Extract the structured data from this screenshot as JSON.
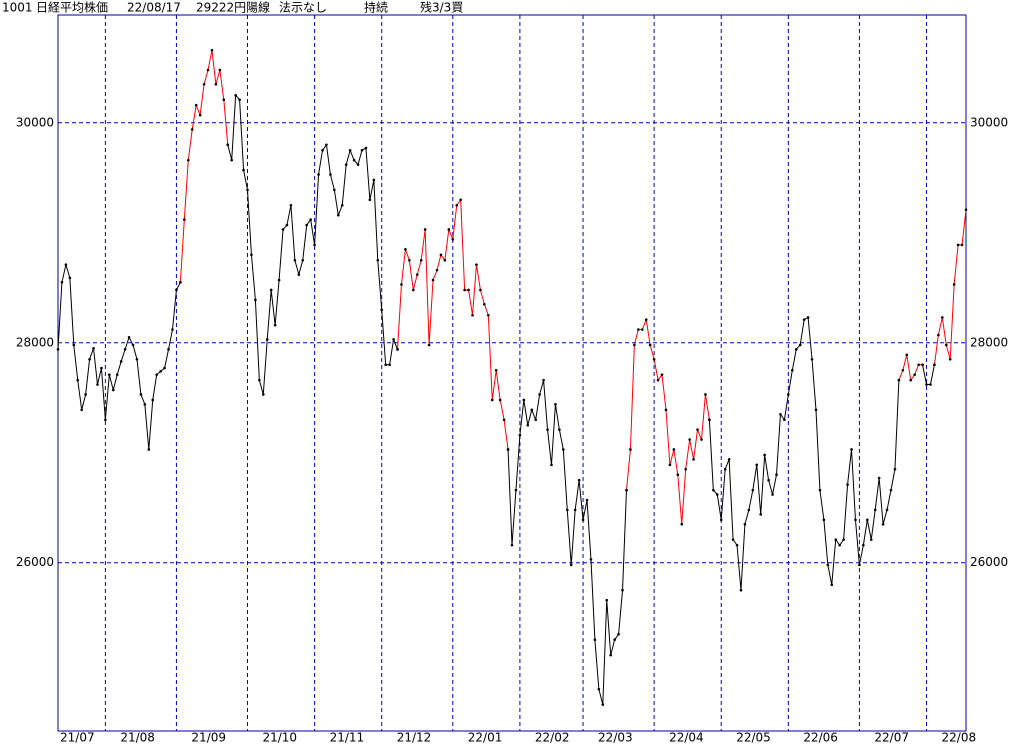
{
  "chart_data": {
    "type": "line",
    "header": [
      "1001",
      "日経平均株価",
      "22/08/17",
      "29222円",
      "陽線",
      "法示なし",
      "持続",
      "残3/3買"
    ],
    "categories": [
      "21/07",
      null,
      null,
      null,
      null,
      null,
      null,
      null,
      null,
      null,
      null,
      null,
      "21/08",
      null,
      null,
      null,
      null,
      null,
      null,
      null,
      null,
      null,
      null,
      null,
      null,
      null,
      null,
      null,
      null,
      null,
      "21/09",
      null,
      null,
      null,
      null,
      null,
      null,
      null,
      null,
      null,
      null,
      null,
      null,
      null,
      null,
      null,
      null,
      null,
      "21/10",
      null,
      null,
      null,
      null,
      null,
      null,
      null,
      null,
      null,
      null,
      null,
      null,
      null,
      null,
      null,
      null,
      "21/11",
      null,
      null,
      null,
      null,
      null,
      null,
      null,
      null,
      null,
      null,
      null,
      null,
      null,
      null,
      null,
      null,
      "21/12",
      null,
      null,
      null,
      null,
      null,
      null,
      null,
      null,
      null,
      null,
      null,
      null,
      null,
      null,
      null,
      null,
      null,
      "22/01",
      null,
      null,
      null,
      null,
      null,
      null,
      null,
      null,
      null,
      null,
      null,
      null,
      null,
      null,
      null,
      null,
      "22/02",
      null,
      null,
      null,
      null,
      null,
      null,
      null,
      null,
      null,
      null,
      null,
      null,
      null,
      null,
      null,
      "22/03",
      null,
      null,
      null,
      null,
      null,
      null,
      null,
      null,
      null,
      null,
      null,
      null,
      null,
      null,
      null,
      null,
      null,
      "22/04",
      null,
      null,
      null,
      null,
      null,
      null,
      null,
      null,
      null,
      null,
      null,
      null,
      null,
      null,
      null,
      null,
      "22/05",
      null,
      null,
      null,
      null,
      null,
      null,
      null,
      null,
      null,
      null,
      null,
      null,
      null,
      null,
      null,
      null,
      "22/06",
      null,
      null,
      null,
      null,
      null,
      null,
      null,
      null,
      null,
      null,
      null,
      null,
      null,
      null,
      null,
      null,
      null,
      "22/07",
      null,
      null,
      null,
      null,
      null,
      null,
      null,
      null,
      null,
      null,
      null,
      null,
      null,
      null,
      null,
      null,
      "22/08",
      null,
      null,
      null,
      null,
      null,
      null,
      null,
      null,
      null,
      null
    ],
    "series": [
      {
        "color": "#000000",
        "values": [
          27940,
          28550,
          28710,
          28590,
          27980,
          27660,
          27390,
          27530,
          27850,
          27950,
          27620,
          27770,
          27300,
          27710,
          27570,
          27710,
          27830,
          27940,
          28050,
          27980,
          27850,
          27530,
          27440,
          27030,
          27480,
          27710,
          27740,
          27770,
          27940,
          28120,
          28480,
          28550,
          null,
          null,
          null,
          null,
          null,
          null,
          null,
          null,
          null,
          null,
          null,
          29800,
          29660,
          30250,
          30210,
          29570,
          29390,
          28800,
          28390,
          27660,
          27530,
          28030,
          28480,
          28160,
          28570,
          29030,
          29070,
          29250,
          28750,
          28620,
          28750,
          29070,
          29120,
          28890,
          29530,
          29750,
          29800,
          29530,
          29390,
          29160,
          29250,
          29620,
          29750,
          29660,
          29620,
          29750,
          29770,
          29300,
          29480,
          28750,
          28300,
          27800,
          27800,
          28030,
          27940,
          null,
          null,
          null,
          null,
          null,
          null,
          null,
          null,
          null,
          null,
          null,
          null,
          null,
          null,
          null,
          null,
          null,
          null,
          null,
          null,
          null,
          null,
          null,
          null,
          null,
          null,
          null,
          27030,
          26160,
          26660,
          27160,
          27480,
          27250,
          27390,
          27300,
          27530,
          27660,
          27210,
          26890,
          27440,
          27210,
          27030,
          26480,
          25980,
          26480,
          26750,
          26390,
          26570,
          26030,
          25300,
          24850,
          24710,
          25660,
          25160,
          25300,
          25350,
          25750,
          26660,
          null,
          null,
          null,
          null,
          null,
          null,
          null,
          null,
          null,
          null,
          null,
          null,
          null,
          null,
          null,
          null,
          null,
          null,
          null,
          null,
          27300,
          26660,
          26620,
          26390,
          26850,
          26940,
          26210,
          26160,
          25750,
          26350,
          26480,
          26660,
          26890,
          26440,
          26980,
          26750,
          26620,
          26800,
          27350,
          27300,
          27530,
          27750,
          27940,
          27980,
          28210,
          28230,
          27850,
          27390,
          26660,
          26390,
          25980,
          25800,
          26210,
          26160,
          26210,
          26710,
          27030,
          26390,
          25980,
          26160,
          26390,
          26210,
          26480,
          26770,
          26350,
          26480,
          26660,
          26850,
          27660,
          null,
          null,
          null,
          null,
          null,
          27800,
          27620,
          27620,
          27800,
          null,
          null,
          null,
          null,
          null,
          null,
          null,
          null
        ]
      },
      {
        "color": "#ff0000",
        "values": [
          null,
          null,
          null,
          null,
          null,
          null,
          null,
          null,
          null,
          null,
          null,
          null,
          null,
          null,
          null,
          null,
          null,
          null,
          null,
          null,
          null,
          null,
          null,
          null,
          null,
          null,
          null,
          null,
          null,
          null,
          null,
          28550,
          29120,
          29660,
          29940,
          30160,
          30070,
          30350,
          30480,
          30660,
          30350,
          30480,
          30210,
          29800,
          null,
          null,
          null,
          null,
          null,
          null,
          null,
          null,
          null,
          null,
          null,
          null,
          null,
          null,
          null,
          null,
          null,
          null,
          null,
          null,
          null,
          null,
          null,
          null,
          null,
          null,
          null,
          null,
          null,
          null,
          null,
          null,
          null,
          null,
          null,
          null,
          null,
          null,
          null,
          null,
          null,
          null,
          27940,
          28530,
          28850,
          28750,
          28480,
          28620,
          28750,
          29030,
          27980,
          28570,
          28660,
          28800,
          28750,
          29030,
          28940,
          29250,
          29300,
          28480,
          28480,
          28250,
          28710,
          28480,
          28350,
          28250,
          27480,
          27750,
          27480,
          27300,
          27030,
          null,
          null,
          null,
          null,
          null,
          null,
          null,
          null,
          null,
          null,
          null,
          null,
          null,
          null,
          null,
          null,
          null,
          null,
          null,
          null,
          null,
          null,
          null,
          null,
          null,
          null,
          null,
          null,
          null,
          26660,
          27030,
          27980,
          28120,
          28120,
          28210,
          27980,
          27850,
          27660,
          27710,
          27390,
          26890,
          27030,
          26800,
          26350,
          26850,
          27120,
          26940,
          27210,
          27120,
          27530,
          27300,
          null,
          null,
          null,
          null,
          null,
          null,
          null,
          null,
          null,
          null,
          null,
          null,
          null,
          null,
          null,
          null,
          null,
          null,
          null,
          null,
          null,
          null,
          null,
          null,
          null,
          null,
          null,
          null,
          null,
          null,
          null,
          null,
          null,
          null,
          null,
          null,
          null,
          null,
          null,
          null,
          null,
          null,
          null,
          null,
          null,
          null,
          null,
          27660,
          27750,
          27890,
          27660,
          27710,
          27800,
          27800,
          null,
          null,
          27800,
          28070,
          28230,
          27980,
          27850,
          28530,
          28890,
          28890,
          29210
        ]
      }
    ],
    "ylim": [
      24470,
      30980
    ],
    "yticks": [
      26000,
      28000,
      30000
    ],
    "grid": true,
    "frame_color": "#0000a0",
    "grid_color": "#0000c8"
  }
}
